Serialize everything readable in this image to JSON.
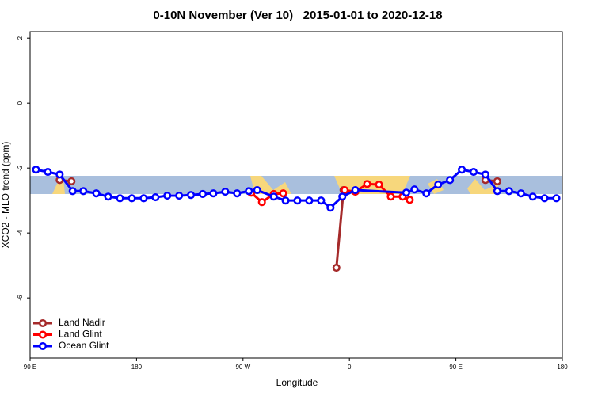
{
  "chart_data": {
    "type": "line",
    "title": "0-10N November (Ver 10)   2015-01-01 to 2020-12-18",
    "xlabel": "Longitude",
    "ylabel": "XCO2 - MLO trend (ppm)",
    "xlim": [
      90,
      540
    ],
    "xticks": [
      {
        "value": 90,
        "label": "90 E"
      },
      180,
      {
        "value": 270,
        "label": "90 W"
      },
      {
        "value": 360,
        "label": "0"
      },
      {
        "value": 450,
        "label": "90 E"
      },
      {
        "value": 540,
        "label": "180"
      }
    ],
    "ylim": [
      -7.85,
      2.2
    ],
    "yticks": [
      -6,
      -4,
      -2,
      0,
      2
    ],
    "legend": "bottom-left",
    "series": [
      {
        "name": "Land Nadir",
        "color": "#a52a2a",
        "x": [
          115,
          125,
          240,
          349,
          355,
          420,
          475,
          485
        ],
        "values": [
          -2.37,
          -2.41,
          null,
          -5.07,
          -2.68,
          null,
          -2.37,
          -2.41
        ]
      },
      {
        "name": "Land Glint",
        "color": "#ff0000",
        "x": [
          277,
          286,
          296,
          304,
          330,
          356,
          365,
          375,
          385,
          395,
          405,
          411
        ],
        "values": [
          -2.76,
          -3.05,
          -2.8,
          -2.78,
          null,
          -2.68,
          -2.73,
          -2.49,
          -2.51,
          -2.88,
          -2.88,
          -2.98
        ]
      },
      {
        "name": "Ocean Glint",
        "color": "#0000ff",
        "x": [
          95,
          105,
          115,
          126,
          135,
          146,
          156,
          166,
          176,
          186,
          196,
          206,
          216,
          226,
          236,
          245,
          255,
          265,
          275,
          282,
          296,
          306,
          316,
          326,
          336,
          344,
          354,
          365,
          408,
          415,
          425,
          435,
          445,
          455,
          465,
          475,
          485,
          495,
          505,
          515,
          525,
          535
        ],
        "values": [
          -2.05,
          -2.12,
          -2.2,
          -2.71,
          -2.71,
          -2.78,
          -2.88,
          -2.93,
          -2.93,
          -2.93,
          -2.9,
          -2.85,
          -2.85,
          -2.83,
          -2.8,
          -2.78,
          -2.73,
          -2.78,
          -2.71,
          -2.68,
          -2.88,
          -3.0,
          -3.0,
          -3.0,
          -3.0,
          -3.22,
          -2.88,
          -2.68,
          -2.76,
          -2.66,
          -2.78,
          -2.51,
          -2.37,
          -2.05,
          -2.12,
          -2.2,
          -2.71,
          -2.71,
          -2.78,
          -2.88,
          -2.93,
          -2.93
        ]
      }
    ]
  }
}
